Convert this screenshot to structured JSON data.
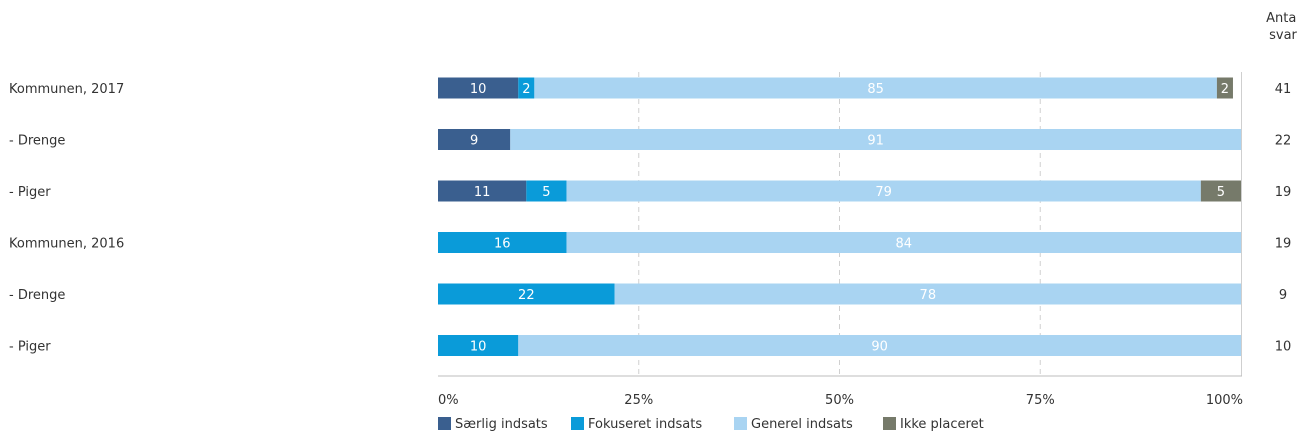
{
  "chart_data": {
    "type": "bar",
    "orientation": "horizontal",
    "stacked": true,
    "percent_stacked": true,
    "categories": [
      "Kommunen, 2017",
      "- Drenge",
      "- Piger",
      "Kommunen, 2016",
      "- Drenge",
      "- Piger"
    ],
    "series": [
      {
        "name": "Særlig indsats",
        "color": "#3a5f8f",
        "values": [
          10,
          9,
          11,
          0,
          0,
          0
        ]
      },
      {
        "name": "Fokuseret indsats",
        "color": "#0a9bd9",
        "values": [
          2,
          0,
          5,
          16,
          22,
          10
        ]
      },
      {
        "name": "Generel indsats",
        "color": "#a9d4f2",
        "values": [
          85,
          91,
          79,
          84,
          78,
          90
        ]
      },
      {
        "name": "Ikke placeret",
        "color": "#767a6a",
        "values": [
          2,
          0,
          5,
          0,
          0,
          0
        ]
      }
    ],
    "count_header": [
      "Antal",
      "svar"
    ],
    "counts": [
      41,
      22,
      19,
      19,
      9,
      10
    ],
    "x_ticks": [
      "0%",
      "25%",
      "50%",
      "75%",
      "100%"
    ],
    "xlim": [
      0,
      100
    ],
    "grid": "vertical-dashed",
    "legend_position": "bottom-center"
  }
}
